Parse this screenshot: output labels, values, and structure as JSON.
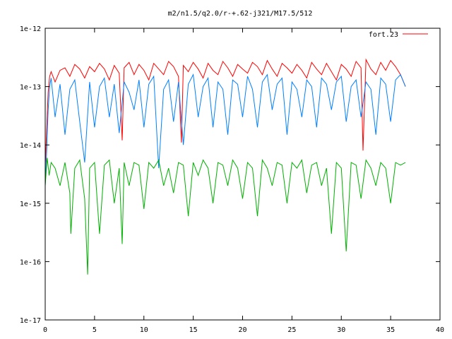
{
  "chart_data": {
    "type": "line",
    "title": "m2/n1.5/q2.0/r-+.62-j321/M17.5/512",
    "xlabel": "",
    "ylabel": "",
    "xlim": [
      0,
      40
    ],
    "ylim": [
      1e-17,
      1e-12
    ],
    "yscale": "log",
    "grid": false,
    "legend_position": "top-right",
    "x_ticks": [
      0,
      5,
      10,
      15,
      20,
      25,
      30,
      35,
      40
    ],
    "x_tick_labels": [
      "0",
      "5",
      "10",
      "15",
      "20",
      "25",
      "30",
      "35",
      "40"
    ],
    "y_ticks": [
      1e-12,
      1e-13,
      1e-14,
      1e-15,
      1e-16,
      1e-17
    ],
    "y_tick_labels": [
      "1e-12",
      "1e-13",
      "1e-14",
      "1e-15",
      "1e-16",
      "1e-17"
    ],
    "series": [
      {
        "name": "fort.23",
        "color": "#ff0000",
        "x": [
          0,
          0.15,
          0.3,
          0.45,
          0.6,
          1.0,
          1.5,
          2.0,
          2.5,
          3.0,
          3.5,
          4.0,
          4.5,
          5.0,
          5.5,
          6.0,
          6.5,
          7.0,
          7.5,
          7.8,
          8.0,
          8.5,
          9.0,
          9.5,
          10.0,
          10.5,
          11.0,
          11.5,
          12.0,
          12.5,
          13.0,
          13.5,
          13.8,
          14.0,
          14.5,
          15.0,
          15.5,
          16.0,
          16.5,
          17.0,
          17.5,
          18.0,
          18.5,
          19.0,
          19.5,
          20.0,
          20.5,
          21.0,
          21.5,
          22.0,
          22.5,
          23.0,
          23.5,
          24.0,
          24.5,
          25.0,
          25.5,
          26.0,
          26.5,
          27.0,
          27.5,
          28.0,
          28.5,
          29.0,
          29.5,
          30.0,
          30.5,
          31.0,
          31.5,
          32.0,
          32.2,
          32.5,
          33.0,
          33.5,
          34.0,
          34.5,
          35.0,
          35.5,
          36.0,
          36.5
        ],
        "y": [
          4e-15,
          2e-14,
          8e-14,
          1.5e-13,
          1.8e-13,
          1.2e-13,
          1.9e-13,
          2.1e-13,
          1.5e-13,
          2.4e-13,
          2e-13,
          1.4e-13,
          2.2e-13,
          1.8e-13,
          2.5e-13,
          2e-13,
          1.3e-13,
          2.3e-13,
          1.7e-13,
          1.2e-14,
          2.1e-13,
          2.6e-13,
          1.6e-13,
          2.4e-13,
          1.9e-13,
          1.3e-13,
          2.5e-13,
          2e-13,
          1.6e-13,
          2.7e-13,
          2.2e-13,
          1.5e-13,
          1.1e-14,
          2.3e-13,
          1.8e-13,
          2.6e-13,
          2e-13,
          1.4e-13,
          2.5e-13,
          1.9e-13,
          1.6e-13,
          2.7e-13,
          2.1e-13,
          1.5e-13,
          2.4e-13,
          2e-13,
          1.7e-13,
          2.6e-13,
          2.2e-13,
          1.6e-13,
          2.8e-13,
          2e-13,
          1.5e-13,
          2.5e-13,
          2.1e-13,
          1.7e-13,
          2.4e-13,
          1.9e-13,
          1.4e-13,
          2.6e-13,
          2e-13,
          1.6e-13,
          2.5e-13,
          1.8e-13,
          1.3e-13,
          2.4e-13,
          2e-13,
          1.5e-13,
          2.7e-13,
          2.1e-13,
          8e-15,
          2.9e-13,
          2e-13,
          1.6e-13,
          2.6e-13,
          1.9e-13,
          2.8e-13,
          2.2e-13,
          1.6e-13,
          1e-13
        ]
      },
      {
        "color": "#0080ff",
        "x": [
          0,
          0.15,
          0.3,
          0.45,
          0.6,
          1.0,
          1.5,
          2.0,
          2.5,
          3.0,
          3.5,
          4.0,
          4.5,
          5.0,
          5.5,
          6.0,
          6.5,
          7.0,
          7.5,
          8.0,
          8.5,
          9.0,
          9.5,
          10.0,
          10.5,
          11.0,
          11.5,
          12.0,
          12.5,
          13.0,
          13.5,
          14.0,
          14.5,
          15.0,
          15.5,
          16.0,
          16.5,
          17.0,
          17.5,
          18.0,
          18.5,
          19.0,
          19.5,
          20.0,
          20.5,
          21.0,
          21.5,
          22.0,
          22.5,
          23.0,
          23.5,
          24.0,
          24.5,
          25.0,
          25.5,
          26.0,
          26.5,
          27.0,
          27.5,
          28.0,
          28.5,
          29.0,
          29.5,
          30.0,
          30.5,
          31.0,
          31.5,
          32.0,
          32.5,
          33.0,
          33.5,
          34.0,
          34.5,
          35.0,
          35.5,
          36.0,
          36.5
        ],
        "y": [
          2e-15,
          8e-15,
          4e-14,
          1e-13,
          1.4e-13,
          3e-14,
          1.1e-13,
          1.5e-14,
          9e-14,
          1.3e-13,
          2.5e-14,
          5e-15,
          1.2e-13,
          2e-14,
          1e-13,
          1.4e-13,
          3e-14,
          1.1e-13,
          1.6e-14,
          1.2e-13,
          8e-14,
          4e-14,
          1.3e-13,
          2e-14,
          1.1e-13,
          1.5e-13,
          4e-15,
          9e-14,
          1.3e-13,
          2.5e-14,
          1.2e-13,
          1e-14,
          1.1e-13,
          1.6e-13,
          3e-14,
          1e-13,
          1.4e-13,
          2e-14,
          1.2e-13,
          9e-14,
          1.5e-14,
          1.3e-13,
          1.1e-13,
          3e-14,
          1.5e-13,
          9e-14,
          2e-14,
          1.2e-13,
          1.6e-13,
          4e-14,
          1.1e-13,
          1.4e-13,
          1.5e-14,
          1.2e-13,
          9e-14,
          3e-14,
          1.3e-13,
          1e-13,
          2e-14,
          1.4e-13,
          1.1e-13,
          4e-14,
          1.2e-13,
          1.5e-13,
          2.5e-14,
          1e-13,
          1.3e-13,
          3e-14,
          1.2e-13,
          9e-14,
          1.5e-14,
          1.4e-13,
          1.1e-13,
          2.5e-14,
          1.3e-13,
          1.6e-13,
          1e-13
        ]
      },
      {
        "color": "#00b000",
        "x": [
          0,
          0.2,
          0.4,
          0.6,
          1.0,
          1.5,
          2.0,
          2.5,
          2.6,
          3.0,
          3.5,
          4.0,
          4.3,
          4.5,
          5.0,
          5.5,
          6.0,
          6.5,
          7.0,
          7.5,
          7.8,
          8.0,
          8.5,
          9.0,
          9.5,
          10.0,
          10.5,
          11.0,
          11.5,
          12.0,
          12.5,
          13.0,
          13.5,
          14.0,
          14.5,
          15.0,
          15.5,
          16.0,
          16.5,
          17.0,
          17.5,
          18.0,
          18.5,
          19.0,
          19.5,
          20.0,
          20.5,
          21.0,
          21.5,
          22.0,
          22.5,
          23.0,
          23.5,
          24.0,
          24.5,
          25.0,
          25.5,
          26.0,
          26.5,
          27.0,
          27.5,
          28.0,
          28.5,
          29.0,
          29.5,
          30.0,
          30.5,
          31.0,
          31.5,
          32.0,
          32.5,
          33.0,
          33.5,
          34.0,
          34.5,
          35.0,
          35.5,
          36.0,
          36.5
        ],
        "y": [
          2e-15,
          6e-15,
          3e-15,
          5e-15,
          4e-15,
          2e-15,
          5e-15,
          1.5e-15,
          3e-16,
          4e-15,
          5.5e-15,
          1.2e-15,
          6e-17,
          4e-15,
          5e-15,
          3e-16,
          4.5e-15,
          5.5e-15,
          1e-15,
          4e-15,
          2e-16,
          5e-15,
          2e-15,
          5e-15,
          4.5e-15,
          8e-16,
          5e-15,
          4e-15,
          5.5e-15,
          2e-15,
          4e-15,
          1.5e-15,
          5e-15,
          4.5e-15,
          6e-16,
          5e-15,
          3e-15,
          5.5e-15,
          4e-15,
          1e-15,
          5e-15,
          4.5e-15,
          2e-15,
          5.5e-15,
          4e-15,
          1.2e-15,
          5e-15,
          4e-15,
          6e-16,
          5.5e-15,
          4e-15,
          2e-15,
          5e-15,
          4.5e-15,
          1e-15,
          5e-15,
          4e-15,
          5.5e-15,
          1.5e-15,
          4.5e-15,
          5e-15,
          2e-15,
          4e-15,
          3e-16,
          5e-15,
          4e-15,
          1.5e-16,
          5e-15,
          4.5e-15,
          1.2e-15,
          5.5e-15,
          4e-15,
          2e-15,
          5e-15,
          4e-15,
          1e-15,
          5e-15,
          4.5e-15,
          5e-15
        ]
      }
    ]
  }
}
